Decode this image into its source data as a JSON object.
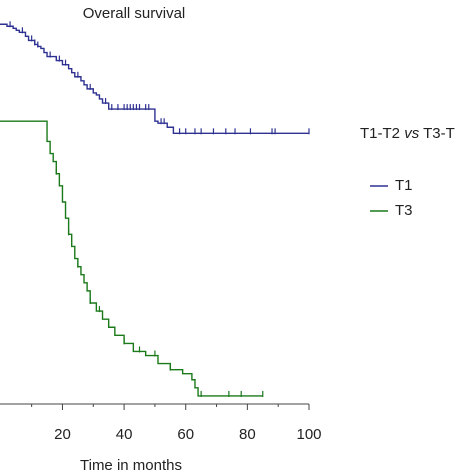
{
  "chart_data": {
    "type": "line",
    "title": "Overall survival",
    "xlabel": "Time in months",
    "ylabel": "",
    "xlim": [
      -10,
      100
    ],
    "ylim": [
      0,
      1
    ],
    "xticks": [
      20,
      40,
      60,
      80,
      100
    ],
    "x_minor_ticks": [
      10,
      30,
      50,
      70,
      90
    ],
    "grid": false,
    "legend": {
      "placement": "right",
      "title_parts": [
        "T1-T2 ",
        "vs",
        " T3-T"
      ],
      "entries": [
        "T1",
        "T3"
      ]
    },
    "series": [
      {
        "name": "T1",
        "color": "#2e3192",
        "step_x": [
          -10,
          1,
          2,
          4,
          5,
          6,
          8,
          9,
          11,
          12,
          13,
          14,
          15,
          18,
          20,
          22,
          23,
          24,
          26,
          27,
          28,
          30,
          31,
          32,
          33,
          35,
          50,
          51,
          54,
          56,
          100
        ],
        "step_y": [
          0.94,
          0.94,
          0.935,
          0.93,
          0.925,
          0.92,
          0.91,
          0.9,
          0.89,
          0.885,
          0.88,
          0.87,
          0.86,
          0.85,
          0.84,
          0.83,
          0.82,
          0.81,
          0.8,
          0.79,
          0.78,
          0.77,
          0.765,
          0.755,
          0.745,
          0.73,
          0.7,
          0.695,
          0.685,
          0.67,
          0.67
        ],
        "censor_x": [
          3,
          7,
          10,
          11,
          12,
          16,
          19,
          21,
          25,
          29,
          34,
          36,
          38,
          40,
          41,
          42,
          43,
          44,
          45,
          47,
          48,
          52,
          53,
          58,
          60,
          63,
          65,
          69,
          73,
          76,
          81,
          88,
          89,
          100
        ]
      },
      {
        "name": "T3",
        "color": "#1a7a1a",
        "step_x": [
          -10,
          14,
          15,
          16,
          17,
          18,
          19,
          20,
          21,
          22,
          23,
          24,
          25,
          26,
          27,
          28,
          29,
          31,
          33,
          35,
          37,
          40,
          43,
          47,
          51,
          55,
          59,
          62,
          63,
          64,
          68,
          78,
          85
        ],
        "step_y": [
          0.7,
          0.7,
          0.65,
          0.62,
          0.6,
          0.57,
          0.54,
          0.5,
          0.46,
          0.42,
          0.39,
          0.36,
          0.34,
          0.32,
          0.3,
          0.28,
          0.25,
          0.23,
          0.21,
          0.19,
          0.17,
          0.15,
          0.13,
          0.12,
          0.1,
          0.085,
          0.075,
          0.06,
          0.04,
          0.02,
          0.02,
          0.02,
          0.02
        ],
        "censor_x": [
          18,
          22,
          25,
          29,
          32,
          40,
          45,
          50,
          55,
          65,
          74,
          78,
          85
        ]
      }
    ]
  }
}
